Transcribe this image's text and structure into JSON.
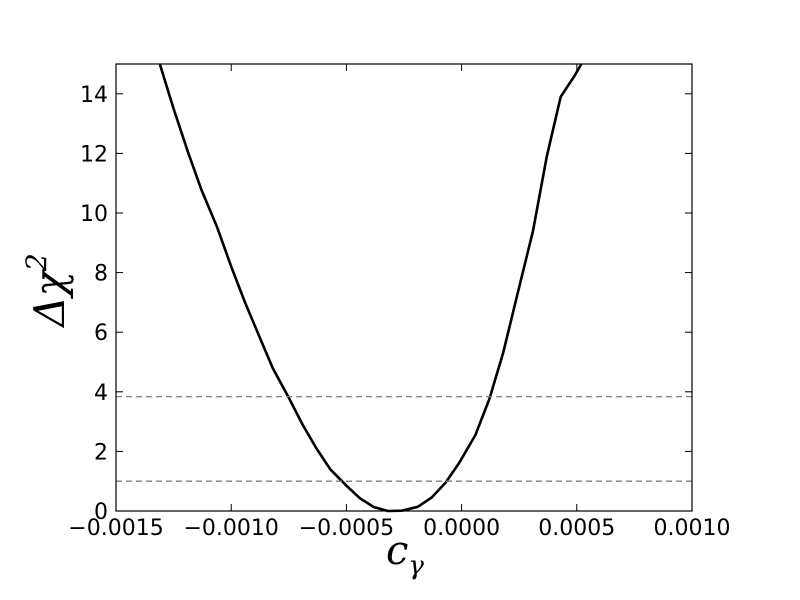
{
  "chart_data": {
    "type": "line",
    "title": "",
    "xlabel": "c",
    "xlabel_sub": "γ",
    "ylabel": "Δχ",
    "ylabel_sup": "2",
    "xlim": [
      -0.0015,
      0.001
    ],
    "ylim": [
      0,
      15
    ],
    "grid": false,
    "legend": "none",
    "x_ticks": [
      {
        "value": -0.0015,
        "label": "−0.0015"
      },
      {
        "value": -0.001,
        "label": "−0.0010"
      },
      {
        "value": -0.0005,
        "label": "−0.0005"
      },
      {
        "value": 0.0,
        "label": "0.0000"
      },
      {
        "value": 0.0005,
        "label": "0.0005"
      },
      {
        "value": 0.001,
        "label": "0.0010"
      }
    ],
    "y_ticks": [
      {
        "value": 0,
        "label": "0"
      },
      {
        "value": 2,
        "label": "2"
      },
      {
        "value": 4,
        "label": "4"
      },
      {
        "value": 6,
        "label": "6"
      },
      {
        "value": 8,
        "label": "8"
      },
      {
        "value": 10,
        "label": "10"
      },
      {
        "value": 12,
        "label": "12"
      },
      {
        "value": 14,
        "label": "14"
      }
    ],
    "series": [
      {
        "color": "#000000",
        "style": "solid",
        "x": [
          -0.00131,
          -0.00125,
          -0.00119,
          -0.00113,
          -0.00106,
          -0.001,
          -0.00094,
          -0.00088,
          -0.00082,
          -0.00075,
          -0.00069,
          -0.00063,
          -0.00057,
          -0.0005,
          -0.00044,
          -0.00038,
          -0.00032,
          -0.00026,
          -0.00019,
          -0.00013,
          -7e-05,
          -1e-05,
          6e-05,
          0.00012,
          0.00018,
          0.00024,
          0.00031,
          0.00037,
          0.00043,
          0.00049,
          0.00052
        ],
        "y": [
          15.0,
          13.5,
          12.1,
          10.8,
          9.5,
          8.2,
          7.0,
          5.9,
          4.8,
          3.8,
          2.9,
          2.1,
          1.4,
          0.85,
          0.42,
          0.13,
          0.0,
          0.01,
          0.14,
          0.45,
          0.95,
          1.62,
          2.55,
          3.74,
          5.3,
          7.2,
          9.4,
          11.9,
          13.9,
          14.6,
          15.0
        ]
      },
      {
        "color": "#808080",
        "style": "dashed",
        "x": [
          -0.0015,
          0.001
        ],
        "y": [
          3.84,
          3.84
        ]
      },
      {
        "color": "#808080",
        "style": "dashed",
        "x": [
          -0.0015,
          0.001
        ],
        "y": [
          1.0,
          1.0
        ]
      }
    ]
  }
}
